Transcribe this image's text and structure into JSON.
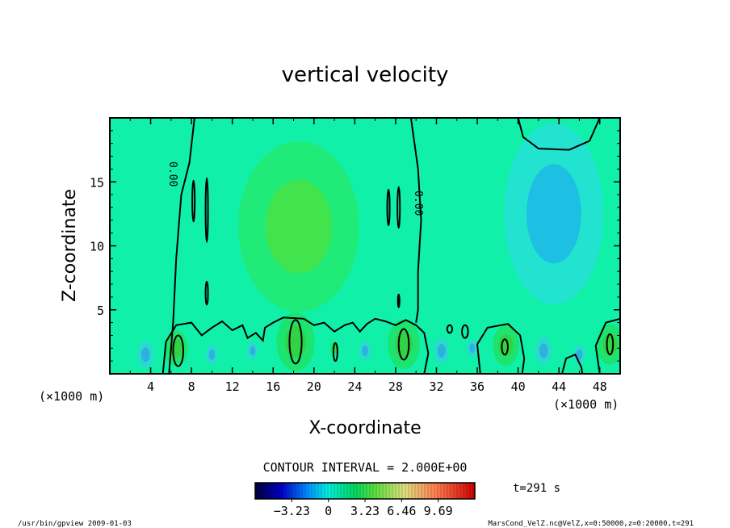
{
  "chart_data": {
    "type": "heatmap",
    "title": "vertical velocity",
    "xlabel": "X-coordinate",
    "ylabel": "Z-coordinate",
    "x_unit": "(×1000 m)",
    "xlim": [
      0,
      50
    ],
    "ylim": [
      0,
      20
    ],
    "xticks": [
      "4",
      "8",
      "12",
      "16",
      "20",
      "24",
      "28",
      "32",
      "36",
      "40",
      "44",
      "48"
    ],
    "yticks": [
      "5",
      "10",
      "15"
    ],
    "contour_interval_text": "CONTOUR INTERVAL = 2.000E+00",
    "contour_labels": [
      "0.00",
      "0.00"
    ],
    "colorbar_ticks": [
      "−3.23",
      "0",
      "3.23",
      "6.46",
      "9.69"
    ],
    "colorbar_range": [
      -6.46,
      12.92
    ],
    "colormap": "blue-cyan-green-yellow-red",
    "time_text": "t=291 s",
    "footer_left": "/usr/bin/gpview   2009-01-03",
    "footer_right": "MarsCond_VelZ.nc@VelZ,x=0:50000,z=0:20000,t=291",
    "field": {
      "background": 0.3,
      "updrafts": [
        {
          "x": 18.5,
          "z": 11.5,
          "amp": 2.2
        },
        {
          "x": 6.5,
          "z": 2.0,
          "amp": 1.6
        },
        {
          "x": 18.2,
          "z": 2.5,
          "amp": 2.6
        },
        {
          "x": 28.8,
          "z": 2.3,
          "amp": 2.2
        },
        {
          "x": 38.8,
          "z": 2.2,
          "amp": 1.8
        },
        {
          "x": 49.0,
          "z": 2.3,
          "amp": 1.8
        },
        {
          "x": 22.0,
          "z": 2.0,
          "amp": 0.6
        }
      ],
      "downdrafts": [
        {
          "x": 43.5,
          "z": 12.5,
          "amp": -2.8
        },
        {
          "x": 3.5,
          "z": 1.5,
          "amp": -1.4
        },
        {
          "x": 10.0,
          "z": 1.5,
          "amp": -1.0
        },
        {
          "x": 14.0,
          "z": 1.8,
          "amp": -0.9
        },
        {
          "x": 25.0,
          "z": 1.8,
          "amp": -1.0
        },
        {
          "x": 32.5,
          "z": 1.8,
          "amp": -1.3
        },
        {
          "x": 35.5,
          "z": 2.0,
          "amp": -0.9
        },
        {
          "x": 42.5,
          "z": 1.8,
          "amp": -1.4
        },
        {
          "x": 46.0,
          "z": 1.5,
          "amp": -1.0
        }
      ]
    }
  }
}
